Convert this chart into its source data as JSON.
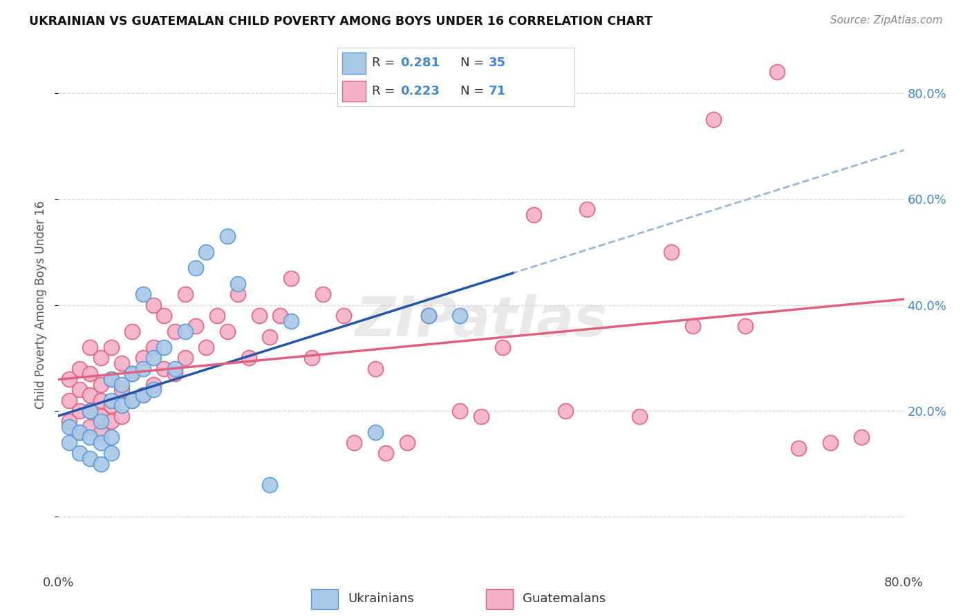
{
  "title": "UKRAINIAN VS GUATEMALAN CHILD POVERTY AMONG BOYS UNDER 16 CORRELATION CHART",
  "source": "Source: ZipAtlas.com",
  "ylabel": "Child Poverty Among Boys Under 16",
  "xlim": [
    0.0,
    0.8
  ],
  "ylim": [
    -0.1,
    0.9
  ],
  "yticks": [
    0.0,
    0.2,
    0.4,
    0.6,
    0.8
  ],
  "ytick_labels_right": [
    "",
    "20.0%",
    "40.0%",
    "60.0%",
    "80.0%"
  ],
  "ukr_color": "#a8c8e8",
  "gua_color": "#f4b0c8",
  "ukr_edge": "#5b9bd5",
  "gua_edge": "#e06080",
  "ukr_R": 0.281,
  "ukr_N": 35,
  "gua_R": 0.223,
  "gua_N": 71,
  "ukr_x": [
    0.01,
    0.01,
    0.02,
    0.02,
    0.03,
    0.03,
    0.03,
    0.04,
    0.04,
    0.04,
    0.05,
    0.05,
    0.05,
    0.05,
    0.06,
    0.06,
    0.07,
    0.07,
    0.08,
    0.08,
    0.08,
    0.09,
    0.09,
    0.1,
    0.11,
    0.12,
    0.13,
    0.14,
    0.16,
    0.17,
    0.2,
    0.22,
    0.3,
    0.35,
    0.38
  ],
  "ukr_y": [
    0.14,
    0.17,
    0.12,
    0.16,
    0.11,
    0.15,
    0.2,
    0.1,
    0.14,
    0.18,
    0.12,
    0.15,
    0.22,
    0.26,
    0.21,
    0.25,
    0.22,
    0.27,
    0.23,
    0.28,
    0.42,
    0.24,
    0.3,
    0.32,
    0.28,
    0.35,
    0.47,
    0.5,
    0.53,
    0.44,
    0.06,
    0.37,
    0.16,
    0.38,
    0.38
  ],
  "gua_x": [
    0.01,
    0.01,
    0.01,
    0.02,
    0.02,
    0.02,
    0.02,
    0.03,
    0.03,
    0.03,
    0.03,
    0.03,
    0.04,
    0.04,
    0.04,
    0.04,
    0.04,
    0.05,
    0.05,
    0.05,
    0.05,
    0.06,
    0.06,
    0.06,
    0.07,
    0.07,
    0.07,
    0.08,
    0.08,
    0.09,
    0.09,
    0.09,
    0.1,
    0.1,
    0.11,
    0.11,
    0.12,
    0.12,
    0.13,
    0.14,
    0.15,
    0.16,
    0.17,
    0.18,
    0.19,
    0.2,
    0.21,
    0.22,
    0.24,
    0.25,
    0.27,
    0.28,
    0.3,
    0.31,
    0.33,
    0.35,
    0.38,
    0.4,
    0.42,
    0.45,
    0.48,
    0.5,
    0.55,
    0.58,
    0.6,
    0.62,
    0.65,
    0.68,
    0.7,
    0.73,
    0.76
  ],
  "gua_y": [
    0.18,
    0.22,
    0.26,
    0.16,
    0.2,
    0.24,
    0.28,
    0.17,
    0.2,
    0.23,
    0.27,
    0.32,
    0.16,
    0.19,
    0.22,
    0.25,
    0.3,
    0.18,
    0.21,
    0.26,
    0.32,
    0.19,
    0.24,
    0.29,
    0.22,
    0.27,
    0.35,
    0.23,
    0.3,
    0.25,
    0.32,
    0.4,
    0.28,
    0.38,
    0.27,
    0.35,
    0.3,
    0.42,
    0.36,
    0.32,
    0.38,
    0.35,
    0.42,
    0.3,
    0.38,
    0.34,
    0.38,
    0.45,
    0.3,
    0.42,
    0.38,
    0.14,
    0.28,
    0.12,
    0.14,
    0.38,
    0.2,
    0.19,
    0.32,
    0.57,
    0.2,
    0.58,
    0.19,
    0.5,
    0.36,
    0.75,
    0.36,
    0.84,
    0.13,
    0.14,
    0.15
  ],
  "bg_color": "#ffffff",
  "grid_color": "#d8d8d8",
  "blue_line_color": "#2255aa",
  "pink_line_color": "#e06080",
  "blue_dash_color": "#9ab8d8"
}
